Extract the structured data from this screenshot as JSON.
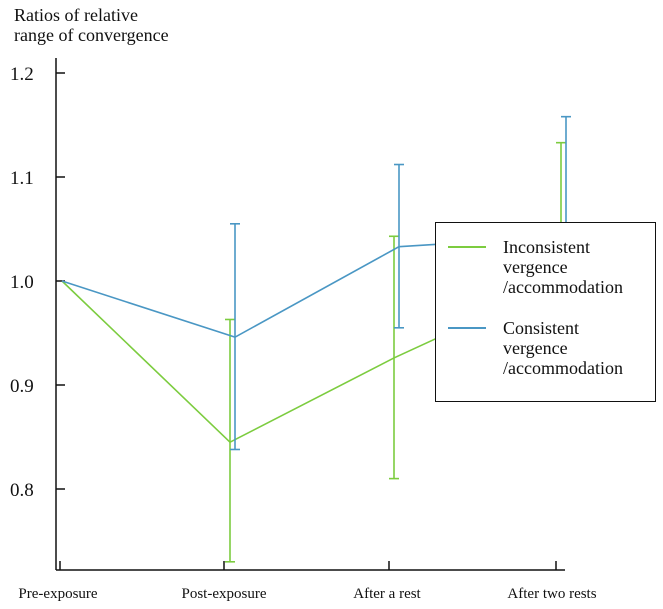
{
  "chart_data": {
    "type": "line",
    "ylabel_lines": [
      "Ratios of relative",
      "range of convergence"
    ],
    "categories": [
      "Pre-exposure",
      "Post-exposure",
      "After a rest",
      "After two rests"
    ],
    "ylim": [
      0.73,
      1.22
    ],
    "yticks": [
      "0.8",
      "0.9",
      "1.0",
      "1.1",
      "1.2"
    ],
    "ytick_values": [
      0.8,
      0.9,
      1.0,
      1.1,
      1.2
    ],
    "grid": false,
    "legend_placement": "right",
    "series": [
      {
        "name_lines": [
          "Inconsistent",
          "vergence",
          "/accommodation"
        ],
        "color": "#7ccc3f",
        "values": [
          1.0,
          0.845,
          0.926,
          1.0
        ],
        "error_low": [
          1.0,
          0.73,
          0.81,
          0.947
        ],
        "error_high": [
          1.0,
          0.963,
          1.043,
          1.133
        ]
      },
      {
        "name_lines": [
          "Consistent",
          "vergence",
          "/accommodation"
        ],
        "color": "#4a97c4",
        "values": [
          1.0,
          0.946,
          1.033,
          1.043
        ],
        "error_low": [
          1.0,
          0.838,
          0.955,
          0.93
        ],
        "error_high": [
          1.0,
          1.055,
          1.112,
          1.158
        ]
      }
    ]
  }
}
